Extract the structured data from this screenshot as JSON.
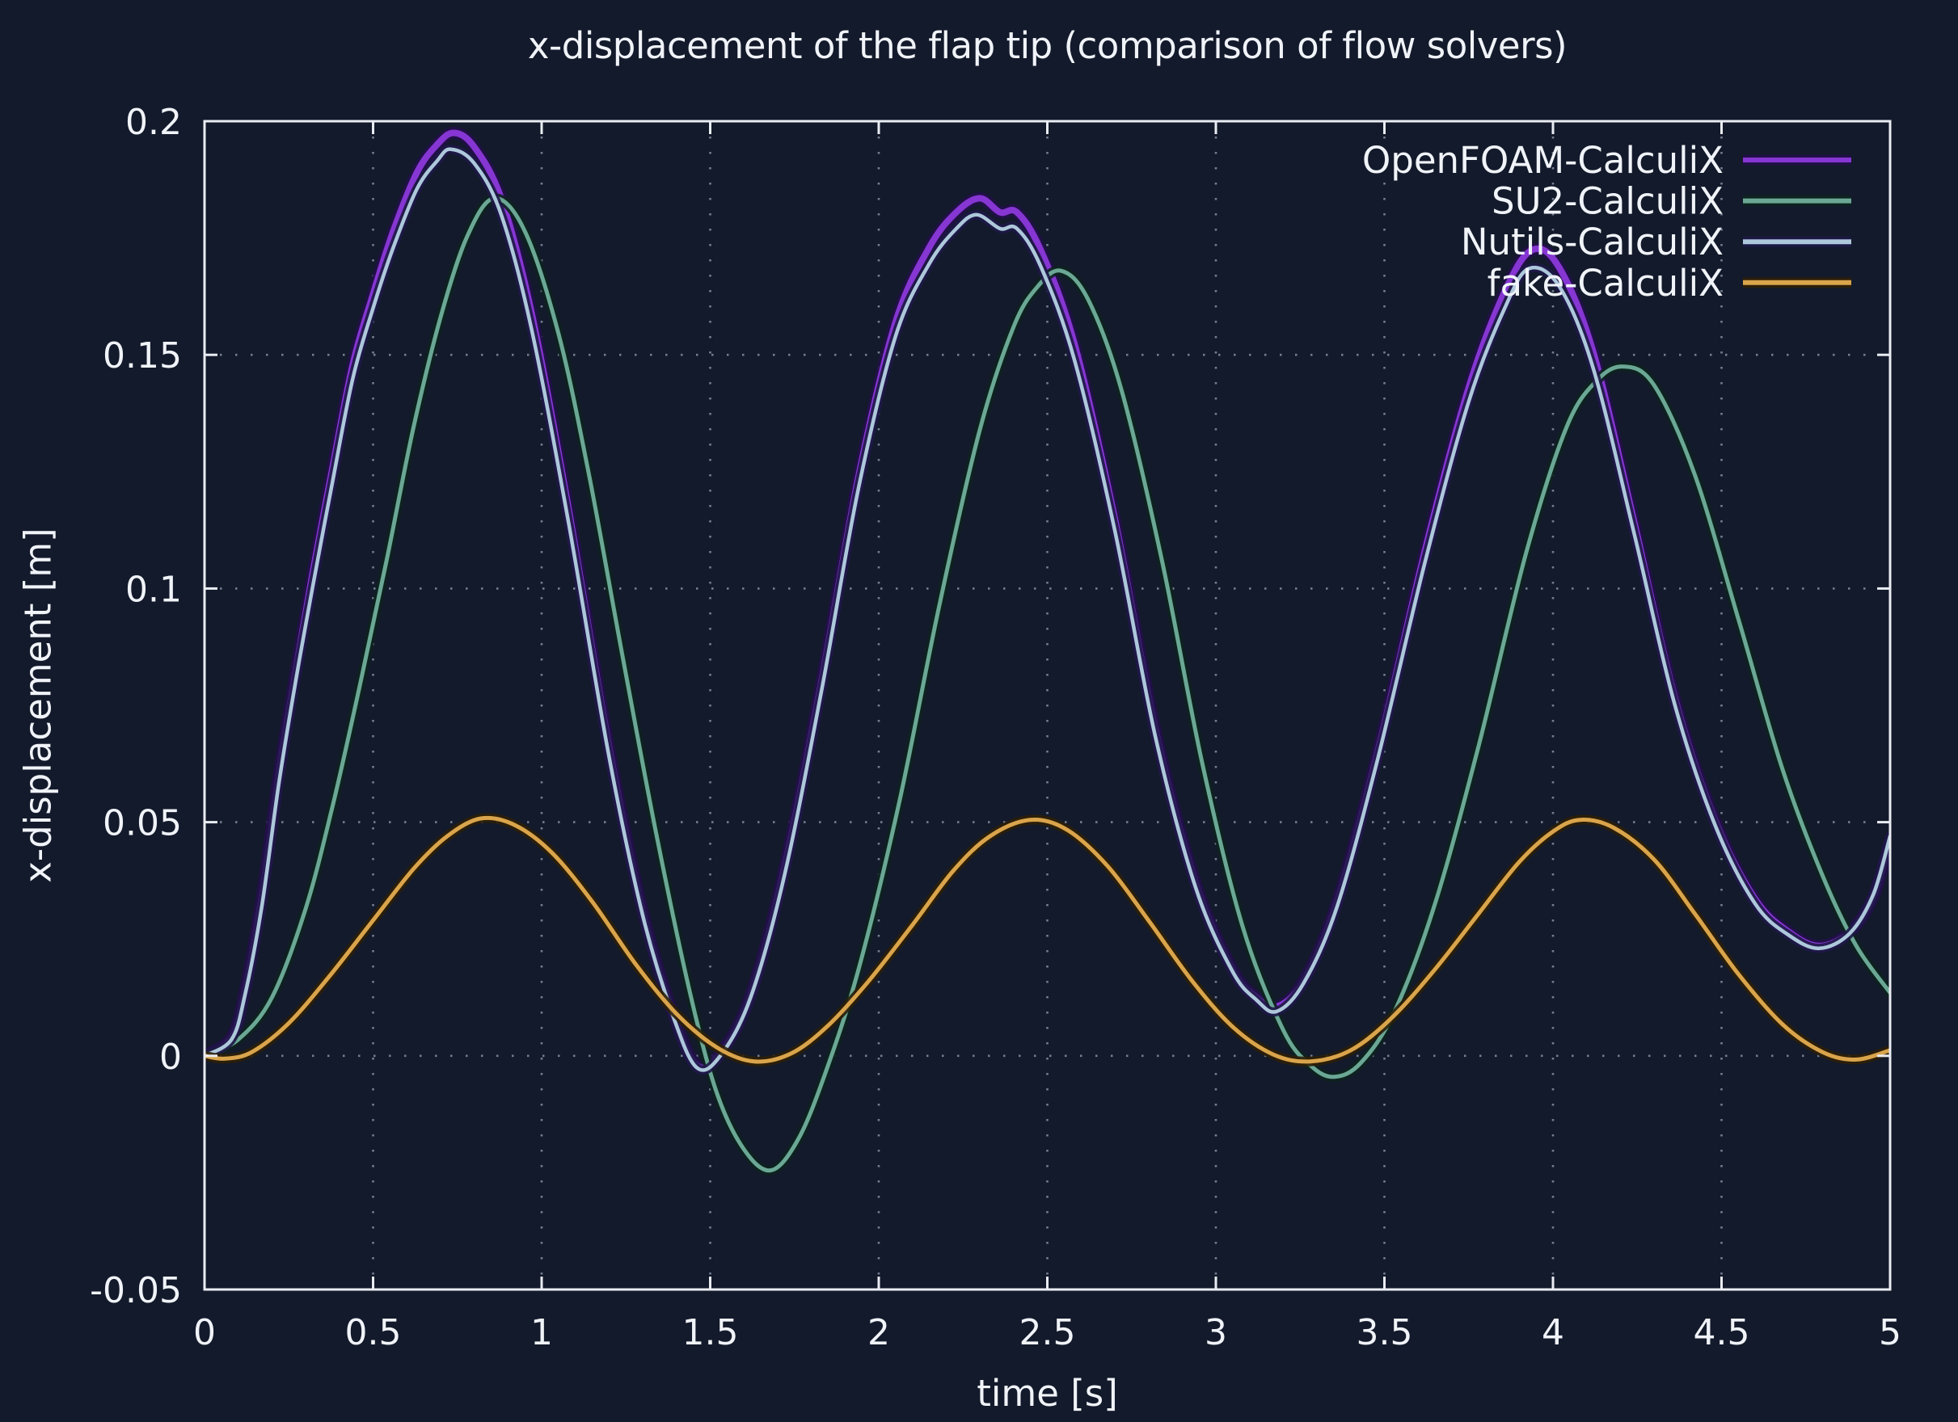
{
  "title": "x-displacement of the flap tip (comparison of flow solvers)",
  "colors": {
    "background": "#131a2b",
    "frame": "#e9ecf2",
    "grid": "#8d98ac",
    "text": "#f0f3f8"
  },
  "chart_data": {
    "type": "line",
    "title": "x-displacement of the flap tip (comparison of flow solvers)",
    "xlabel": "time [s]",
    "ylabel": "x-displacement [m]",
    "xlim": [
      0,
      5
    ],
    "ylim": [
      -0.05,
      0.2
    ],
    "xticks": [
      0,
      0.5,
      1,
      1.5,
      2,
      2.5,
      3,
      3.5,
      4,
      4.5,
      5
    ],
    "xtick_labels": [
      "0",
      "0.5",
      "1",
      "1.5",
      "2",
      "2.5",
      "3",
      "3.5",
      "4",
      "4.5",
      "5"
    ],
    "yticks": [
      -0.05,
      0,
      0.05,
      0.1,
      0.15,
      0.2
    ],
    "ytick_labels": [
      "-0.05",
      "0",
      "0.05",
      "0.1",
      "0.15",
      "0.2"
    ],
    "grid": true,
    "legend_position": "top-right",
    "series": [
      {
        "name": "OpenFOAM-CalculiX",
        "color": "#8636d2",
        "halo": "#23104a",
        "width": 8,
        "points": [
          [
            0,
            0
          ],
          [
            0.08,
            0.004
          ],
          [
            0.12,
            0.014
          ],
          [
            0.17,
            0.034
          ],
          [
            0.22,
            0.06
          ],
          [
            0.27,
            0.082
          ],
          [
            0.32,
            0.103
          ],
          [
            0.38,
            0.126
          ],
          [
            0.44,
            0.148
          ],
          [
            0.5,
            0.163
          ],
          [
            0.56,
            0.1765
          ],
          [
            0.63,
            0.189
          ],
          [
            0.69,
            0.195
          ],
          [
            0.74,
            0.1975
          ],
          [
            0.8,
            0.1945
          ],
          [
            0.88,
            0.1835
          ],
          [
            0.97,
            0.159
          ],
          [
            1.08,
            0.117
          ],
          [
            1.2,
            0.066
          ],
          [
            1.3,
            0.031
          ],
          [
            1.39,
            0.009
          ],
          [
            1.46,
            -0.002
          ],
          [
            1.53,
            0.0005
          ],
          [
            1.62,
            0.013
          ],
          [
            1.72,
            0.04
          ],
          [
            1.83,
            0.08
          ],
          [
            1.94,
            0.124
          ],
          [
            2.05,
            0.157
          ],
          [
            2.15,
            0.173
          ],
          [
            2.23,
            0.1805
          ],
          [
            2.3,
            0.1835
          ],
          [
            2.36,
            0.1805
          ],
          [
            2.41,
            0.1805
          ],
          [
            2.48,
            0.1725
          ],
          [
            2.58,
            0.1525
          ],
          [
            2.7,
            0.115
          ],
          [
            2.82,
            0.07
          ],
          [
            2.94,
            0.037
          ],
          [
            3.05,
            0.0185
          ],
          [
            3.12,
            0.0125
          ],
          [
            3.18,
            0.0105
          ],
          [
            3.26,
            0.016
          ],
          [
            3.36,
            0.033
          ],
          [
            3.48,
            0.065
          ],
          [
            3.62,
            0.108
          ],
          [
            3.75,
            0.143
          ],
          [
            3.86,
            0.164
          ],
          [
            3.94,
            0.1725
          ],
          [
            4.02,
            0.1685
          ],
          [
            4.12,
            0.1505
          ],
          [
            4.24,
            0.1145
          ],
          [
            4.36,
            0.077
          ],
          [
            4.48,
            0.0505
          ],
          [
            4.6,
            0.0335
          ],
          [
            4.7,
            0.0265
          ],
          [
            4.79,
            0.0235
          ],
          [
            4.88,
            0.0265
          ],
          [
            4.95,
            0.034
          ],
          [
            5,
            0.046
          ]
        ]
      },
      {
        "name": "SU2-CalculiX",
        "color": "#6ba795",
        "halo": "#0d241e",
        "width": 5,
        "points": [
          [
            0,
            0
          ],
          [
            0.1,
            0.0035
          ],
          [
            0.2,
            0.0125
          ],
          [
            0.3,
            0.0315
          ],
          [
            0.38,
            0.0535
          ],
          [
            0.46,
            0.079
          ],
          [
            0.54,
            0.106
          ],
          [
            0.62,
            0.1345
          ],
          [
            0.7,
            0.158
          ],
          [
            0.78,
            0.1755
          ],
          [
            0.86,
            0.1835
          ],
          [
            0.95,
            0.1765
          ],
          [
            1.05,
            0.1545
          ],
          [
            1.14,
            0.1245
          ],
          [
            1.24,
            0.0855
          ],
          [
            1.34,
            0.0475
          ],
          [
            1.44,
            0.0135
          ],
          [
            1.52,
            -0.008
          ],
          [
            1.6,
            -0.02
          ],
          [
            1.68,
            -0.0245
          ],
          [
            1.76,
            -0.018
          ],
          [
            1.84,
            -0.004
          ],
          [
            1.94,
            0.0185
          ],
          [
            2.06,
            0.054
          ],
          [
            2.18,
            0.0965
          ],
          [
            2.3,
            0.134
          ],
          [
            2.4,
            0.156
          ],
          [
            2.47,
            0.1645
          ],
          [
            2.54,
            0.168
          ],
          [
            2.62,
            0.162
          ],
          [
            2.72,
            0.1425
          ],
          [
            2.84,
            0.106
          ],
          [
            2.96,
            0.0625
          ],
          [
            3.08,
            0.0275
          ],
          [
            3.2,
            0.0055
          ],
          [
            3.28,
            -0.002
          ],
          [
            3.35,
            -0.0045
          ],
          [
            3.43,
            -0.0015
          ],
          [
            3.53,
            0.0095
          ],
          [
            3.65,
            0.0325
          ],
          [
            3.78,
            0.0665
          ],
          [
            3.92,
            0.1075
          ],
          [
            4.04,
            0.1345
          ],
          [
            4.13,
            0.1445
          ],
          [
            4.21,
            0.1475
          ],
          [
            4.3,
            0.1435
          ],
          [
            4.42,
            0.1245
          ],
          [
            4.55,
            0.0935
          ],
          [
            4.68,
            0.0615
          ],
          [
            4.8,
            0.0385
          ],
          [
            4.9,
            0.0235
          ],
          [
            5,
            0.0135
          ]
        ]
      },
      {
        "name": "Nutils-CalculiX",
        "color": "#aec8db",
        "halo": "#1e1847",
        "width": 4.5,
        "points": [
          [
            0,
            0
          ],
          [
            0.08,
            0.0035
          ],
          [
            0.12,
            0.013
          ],
          [
            0.17,
            0.032
          ],
          [
            0.22,
            0.058
          ],
          [
            0.27,
            0.08
          ],
          [
            0.32,
            0.1
          ],
          [
            0.38,
            0.123
          ],
          [
            0.44,
            0.145
          ],
          [
            0.5,
            0.16
          ],
          [
            0.56,
            0.173
          ],
          [
            0.63,
            0.1855
          ],
          [
            0.69,
            0.1915
          ],
          [
            0.73,
            0.194
          ],
          [
            0.8,
            0.191
          ],
          [
            0.88,
            0.18
          ],
          [
            0.97,
            0.1555
          ],
          [
            1.08,
            0.114
          ],
          [
            1.2,
            0.064
          ],
          [
            1.3,
            0.03
          ],
          [
            1.39,
            0.0085
          ],
          [
            1.46,
            -0.0025
          ],
          [
            1.53,
            0
          ],
          [
            1.62,
            0.0125
          ],
          [
            1.72,
            0.0385
          ],
          [
            1.83,
            0.078
          ],
          [
            1.94,
            0.1215
          ],
          [
            2.05,
            0.154
          ],
          [
            2.15,
            0.1695
          ],
          [
            2.23,
            0.177
          ],
          [
            2.29,
            0.18
          ],
          [
            2.36,
            0.177
          ],
          [
            2.41,
            0.177
          ],
          [
            2.48,
            0.169
          ],
          [
            2.58,
            0.149
          ],
          [
            2.7,
            0.1125
          ],
          [
            2.82,
            0.0685
          ],
          [
            2.94,
            0.036
          ],
          [
            3.05,
            0.018
          ],
          [
            3.12,
            0.012
          ],
          [
            3.18,
            0.0095
          ],
          [
            3.26,
            0.0155
          ],
          [
            3.36,
            0.032
          ],
          [
            3.48,
            0.0635
          ],
          [
            3.62,
            0.1055
          ],
          [
            3.75,
            0.14
          ],
          [
            3.86,
            0.1605
          ],
          [
            3.93,
            0.1685
          ],
          [
            4.02,
            0.1645
          ],
          [
            4.12,
            0.147
          ],
          [
            4.24,
            0.112
          ],
          [
            4.36,
            0.0755
          ],
          [
            4.48,
            0.0495
          ],
          [
            4.6,
            0.0325
          ],
          [
            4.7,
            0.0258
          ],
          [
            4.79,
            0.023
          ],
          [
            4.88,
            0.0262
          ],
          [
            4.95,
            0.0345
          ],
          [
            5,
            0.047
          ]
        ]
      },
      {
        "name": "fake-CalculiX",
        "color": "#d9a44c",
        "halo": "#2e1f07",
        "width": 5,
        "points": [
          [
            0,
            0
          ],
          [
            0.06,
            -0.0006
          ],
          [
            0.14,
            0.0008
          ],
          [
            0.25,
            0.007
          ],
          [
            0.37,
            0.017
          ],
          [
            0.5,
            0.029
          ],
          [
            0.62,
            0.04
          ],
          [
            0.72,
            0.047
          ],
          [
            0.82,
            0.0508
          ],
          [
            0.92,
            0.0494
          ],
          [
            1.03,
            0.0435
          ],
          [
            1.15,
            0.033
          ],
          [
            1.28,
            0.0195
          ],
          [
            1.4,
            0.009
          ],
          [
            1.52,
            0.0018
          ],
          [
            1.63,
            -0.0012
          ],
          [
            1.74,
            0.0005
          ],
          [
            1.85,
            0.0065
          ],
          [
            1.97,
            0.016
          ],
          [
            2.1,
            0.028
          ],
          [
            2.22,
            0.0395
          ],
          [
            2.33,
            0.047
          ],
          [
            2.45,
            0.0505
          ],
          [
            2.56,
            0.0483
          ],
          [
            2.68,
            0.0405
          ],
          [
            2.8,
            0.029
          ],
          [
            2.93,
            0.016
          ],
          [
            3.05,
            0.0062
          ],
          [
            3.17,
            0.0003
          ],
          [
            3.28,
            -0.0012
          ],
          [
            3.4,
            0.0012
          ],
          [
            3.52,
            0.008
          ],
          [
            3.65,
            0.0185
          ],
          [
            3.78,
            0.0305
          ],
          [
            3.9,
            0.0415
          ],
          [
            4,
            0.048
          ],
          [
            4.08,
            0.0505
          ],
          [
            4.18,
            0.0488
          ],
          [
            4.3,
            0.042
          ],
          [
            4.42,
            0.0305
          ],
          [
            4.55,
            0.0175
          ],
          [
            4.68,
            0.0068
          ],
          [
            4.8,
            0.0008
          ],
          [
            4.9,
            -0.0008
          ],
          [
            5,
            0.0012
          ]
        ]
      }
    ]
  }
}
